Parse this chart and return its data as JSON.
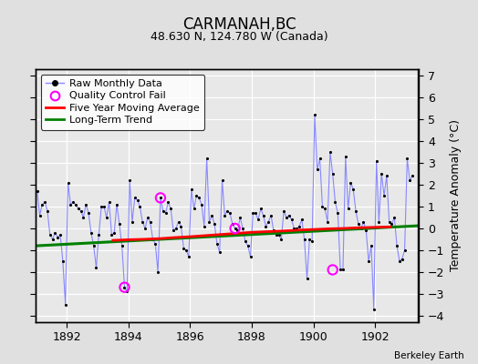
{
  "title": "CARMANAH,BC",
  "subtitle": "48.630 N, 124.780 W (Canada)",
  "ylabel": "Temperature Anomaly (°C)",
  "credit": "Berkeley Earth",
  "xlim": [
    1891.0,
    1903.4
  ],
  "ylim": [
    -4.3,
    7.3
  ],
  "yticks": [
    -4,
    -3,
    -2,
    -1,
    0,
    1,
    2,
    3,
    4,
    5,
    6,
    7
  ],
  "xticks": [
    1892,
    1894,
    1896,
    1898,
    1900,
    1902
  ],
  "fig_bg_color": "#e0e0e0",
  "plot_bg_color": "#e8e8e8",
  "grid_color": "#ffffff",
  "raw_line_color": "#8888ff",
  "raw_marker_color": "black",
  "moving_avg_color": "red",
  "trend_color": "green",
  "qc_fail_color": "magenta",
  "monthly_data": {
    "times": [
      1891.042,
      1891.125,
      1891.208,
      1891.292,
      1891.375,
      1891.458,
      1891.542,
      1891.625,
      1891.708,
      1891.792,
      1891.875,
      1891.958,
      1892.042,
      1892.125,
      1892.208,
      1892.292,
      1892.375,
      1892.458,
      1892.542,
      1892.625,
      1892.708,
      1892.792,
      1892.875,
      1892.958,
      1893.042,
      1893.125,
      1893.208,
      1893.292,
      1893.375,
      1893.458,
      1893.542,
      1893.625,
      1893.708,
      1893.792,
      1893.875,
      1893.958,
      1894.042,
      1894.125,
      1894.208,
      1894.292,
      1894.375,
      1894.458,
      1894.542,
      1894.625,
      1894.708,
      1894.792,
      1894.875,
      1894.958,
      1895.042,
      1895.125,
      1895.208,
      1895.292,
      1895.375,
      1895.458,
      1895.542,
      1895.625,
      1895.708,
      1895.792,
      1895.875,
      1895.958,
      1896.042,
      1896.125,
      1896.208,
      1896.292,
      1896.375,
      1896.458,
      1896.542,
      1896.625,
      1896.708,
      1896.792,
      1896.875,
      1896.958,
      1897.042,
      1897.125,
      1897.208,
      1897.292,
      1897.375,
      1897.458,
      1897.542,
      1897.625,
      1897.708,
      1897.792,
      1897.875,
      1897.958,
      1898.042,
      1898.125,
      1898.208,
      1898.292,
      1898.375,
      1898.458,
      1898.542,
      1898.625,
      1898.708,
      1898.792,
      1898.875,
      1898.958,
      1899.042,
      1899.125,
      1899.208,
      1899.292,
      1899.375,
      1899.458,
      1899.542,
      1899.625,
      1899.708,
      1899.792,
      1899.875,
      1899.958,
      1900.042,
      1900.125,
      1900.208,
      1900.292,
      1900.375,
      1900.458,
      1900.542,
      1900.625,
      1900.708,
      1900.792,
      1900.875,
      1900.958,
      1901.042,
      1901.125,
      1901.208,
      1901.292,
      1901.375,
      1901.458,
      1901.542,
      1901.625,
      1901.708,
      1901.792,
      1901.875,
      1901.958,
      1902.042,
      1902.125,
      1902.208,
      1902.292,
      1902.375,
      1902.458,
      1902.542,
      1902.625,
      1902.708,
      1902.792,
      1902.875,
      1902.958,
      1903.042,
      1903.125,
      1903.208
    ],
    "values": [
      1.7,
      0.6,
      1.1,
      1.2,
      0.8,
      -0.3,
      -0.5,
      -0.2,
      -0.4,
      -0.3,
      -1.5,
      -3.5,
      2.1,
      1.1,
      1.2,
      1.1,
      0.9,
      0.8,
      0.5,
      1.1,
      0.7,
      -0.2,
      -0.8,
      -1.8,
      -0.3,
      1.0,
      1.0,
      0.5,
      1.2,
      -0.3,
      -0.2,
      1.1,
      0.2,
      -0.8,
      -2.7,
      -2.9,
      2.2,
      0.3,
      1.4,
      1.3,
      1.0,
      0.3,
      0.0,
      0.5,
      0.3,
      -0.5,
      -0.7,
      -2.0,
      1.4,
      0.8,
      0.7,
      1.2,
      0.9,
      -0.1,
      0.0,
      0.3,
      0.1,
      -0.9,
      -1.0,
      -1.3,
      1.8,
      0.9,
      1.5,
      1.4,
      1.1,
      0.1,
      3.2,
      0.3,
      0.6,
      0.2,
      -0.7,
      -1.1,
      2.2,
      0.6,
      0.8,
      0.7,
      0.2,
      0.0,
      -0.1,
      0.5,
      0.0,
      -0.6,
      -0.8,
      -1.3,
      0.7,
      0.7,
      0.4,
      0.9,
      0.6,
      0.1,
      0.3,
      0.6,
      -0.1,
      -0.3,
      -0.3,
      -0.5,
      0.8,
      0.5,
      0.6,
      0.4,
      0.0,
      0.0,
      0.1,
      0.4,
      -0.5,
      -2.3,
      -0.5,
      -0.6,
      5.2,
      2.7,
      3.2,
      1.0,
      0.9,
      0.3,
      3.5,
      2.5,
      1.2,
      0.7,
      -1.9,
      -1.9,
      3.3,
      0.9,
      2.1,
      1.8,
      0.8,
      0.2,
      0.0,
      0.3,
      -0.1,
      -1.5,
      -0.8,
      -3.7,
      3.1,
      0.3,
      2.5,
      1.5,
      2.4,
      0.3,
      0.2,
      0.5,
      -0.8,
      -1.5,
      -1.4,
      -1.0,
      3.2,
      2.2,
      2.4
    ]
  },
  "qc_fail_points": {
    "times": [
      1893.875,
      1895.042,
      1897.458,
      1900.625
    ],
    "values": [
      -2.7,
      1.4,
      0.0,
      -1.9
    ]
  },
  "trend_line": {
    "x": [
      1891.0,
      1903.4
    ],
    "y": [
      -0.8,
      0.12
    ]
  },
  "moving_avg": {
    "times": [
      1893.5,
      1894.0,
      1894.5,
      1895.0,
      1895.5,
      1896.0,
      1896.5,
      1897.0,
      1897.5,
      1898.0,
      1898.5,
      1899.0,
      1899.5,
      1900.0,
      1900.5,
      1901.0,
      1901.5,
      1902.0,
      1902.5
    ],
    "values": [
      -0.55,
      -0.52,
      -0.5,
      -0.47,
      -0.42,
      -0.38,
      -0.33,
      -0.28,
      -0.23,
      -0.18,
      -0.15,
      -0.12,
      -0.08,
      -0.05,
      -0.02,
      0.0,
      0.03,
      0.05,
      0.07
    ]
  }
}
